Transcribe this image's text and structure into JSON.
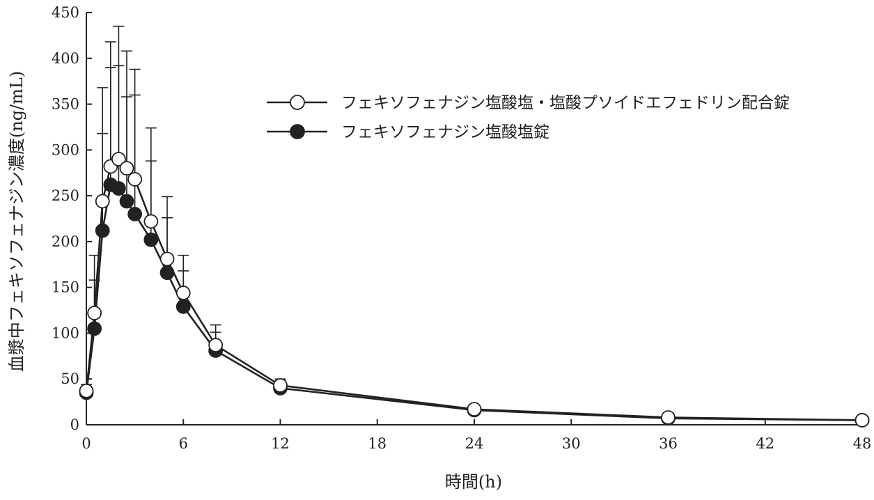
{
  "chart_data": {
    "type": "line",
    "xlabel": "時間(h)",
    "ylabel": "血漿中フェキソフェナジン濃度(ng/mL)",
    "xlim": [
      0,
      48
    ],
    "ylim": [
      0,
      450
    ],
    "xticks": [
      0,
      6,
      12,
      18,
      24,
      30,
      36,
      42,
      48
    ],
    "yticks": [
      0,
      50,
      100,
      150,
      200,
      250,
      300,
      350,
      400,
      450
    ],
    "grid": false,
    "legend_position": "top-right",
    "series": [
      {
        "name": "フェキソフェナジン塩酸塩・塩酸プソイドエフェドリン配合錠",
        "marker": "open-circle",
        "x": [
          0,
          0.5,
          1,
          1.5,
          2,
          2.5,
          3,
          4,
          5,
          6,
          8,
          12,
          24,
          36,
          48
        ],
        "y": [
          37,
          122,
          244,
          282,
          290,
          280,
          268,
          222,
          181,
          144,
          87,
          43,
          17,
          8,
          5
        ],
        "error_upper": [
          44,
          185,
          368,
          418,
          435,
          408,
          388,
          324,
          249,
          185,
          109,
          50,
          null,
          null,
          null
        ]
      },
      {
        "name": "フェキソフェナジン塩酸塩錠",
        "marker": "filled-circle",
        "x": [
          0,
          0.5,
          1,
          1.5,
          2,
          2.5,
          3,
          4,
          5,
          6,
          8,
          12,
          24,
          36,
          48
        ],
        "y": [
          35,
          105,
          212,
          262,
          258,
          244,
          230,
          202,
          166,
          129,
          81,
          40,
          16,
          7,
          5
        ],
        "error_upper": [
          42,
          158,
          318,
          390,
          392,
          358,
          360,
          288,
          226,
          168,
          101,
          48,
          null,
          null,
          null
        ]
      }
    ]
  }
}
